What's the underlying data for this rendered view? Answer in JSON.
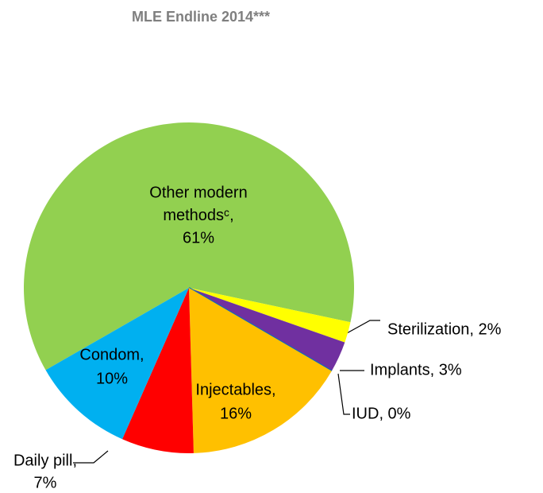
{
  "chart_data": {
    "type": "pie",
    "title": "MLE Endline 2014***",
    "categories": [
      "Other modern methodsᶜ",
      "Sterilization",
      "Implants",
      "IUD",
      "Injectables",
      "Daily pill",
      "Condom"
    ],
    "values": [
      61,
      2,
      3,
      0,
      16,
      7,
      10
    ],
    "labels": [
      [
        "Other modern",
        "methodsᶜ,",
        "61%"
      ],
      [
        "Sterilization, 2%"
      ],
      [
        "Implants, 3%"
      ],
      [
        "IUD, 0%"
      ],
      [
        "Injectables,",
        "16%"
      ],
      [
        "Daily pill,",
        "7%"
      ],
      [
        "Condom,",
        "10%"
      ]
    ],
    "colors": [
      "#92d050",
      "#ffff00",
      "#7030a0",
      "#0070c0",
      "#ffc000",
      "#ff0000",
      "#00b0f0"
    ]
  }
}
